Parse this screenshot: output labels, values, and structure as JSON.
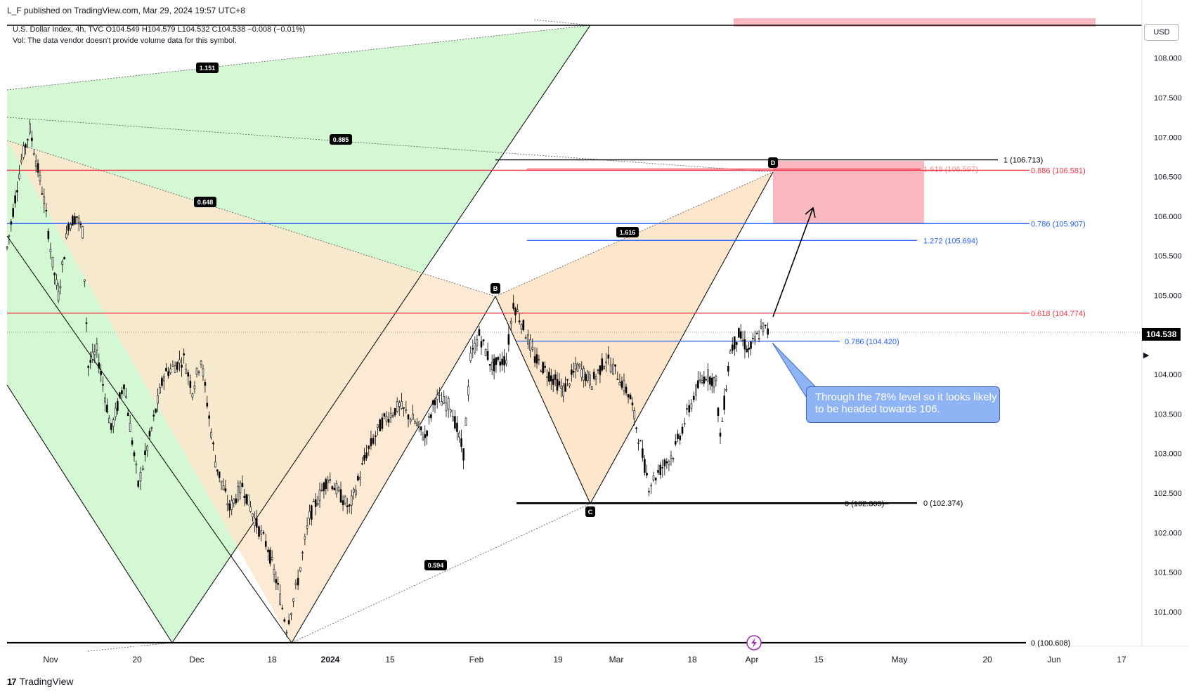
{
  "header": {
    "published": "L_F published on TradingView.com, Mar 29, 2024 19:57 UTC+8",
    "symbol_line": "U.S. Dollar Index, 4h, TVC  O104.549  H104.579  L104.532  C104.538  −0.008 (−0.01%)",
    "vol_line": "Vol: The data vendor doesn't provide volume data for this symbol."
  },
  "toolbar": {
    "currency": "USD",
    "last_price": "104.538"
  },
  "footer": {
    "brand": "TradingView"
  },
  "annotation": {
    "callout_text": "Through the 78% level so it looks likely to be headed towards 106."
  },
  "colors": {
    "green_fill": "#c8f5c8",
    "orange_fill": "#fde3c4",
    "red_zone": "#f9b8bf",
    "red_line": "#f23645",
    "blue_line": "#2962ff",
    "black": "#000000"
  },
  "chart_data": {
    "type": "candlestick",
    "symbol": "U.S. Dollar Index, 4h, TVC",
    "x_ticks": [
      "Nov",
      "20",
      "Dec",
      "18",
      "2024",
      "15",
      "Feb",
      "19",
      "Mar",
      "18",
      "Apr",
      "15",
      "May",
      "20",
      "Jun",
      "17"
    ],
    "y_ticks": [
      "108.000",
      "107.500",
      "107.000",
      "106.500",
      "106.000",
      "105.500",
      "105.000",
      "104.000",
      "103.500",
      "103.000",
      "102.500",
      "102.000",
      "101.500",
      "101.000"
    ],
    "ylim": [
      100.45,
      108.5
    ],
    "last_price": 104.538,
    "price_path": [
      [
        0,
        105.6
      ],
      [
        1,
        106.7
      ],
      [
        1.6,
        107.1
      ],
      [
        2.6,
        106.2
      ],
      [
        3.2,
        105.4
      ],
      [
        3.6,
        105.0
      ],
      [
        4.3,
        105.9
      ],
      [
        4.9,
        106.0
      ],
      [
        5.3,
        105.8
      ],
      [
        5.7,
        104.1
      ],
      [
        6.3,
        104.3
      ],
      [
        7.3,
        103.3
      ],
      [
        8.2,
        103.9
      ],
      [
        9.2,
        102.6
      ],
      [
        10.0,
        103.2
      ],
      [
        11.0,
        104.0
      ],
      [
        12.4,
        104.2
      ],
      [
        13.0,
        103.8
      ],
      [
        13.6,
        104.2
      ],
      [
        14.6,
        102.9
      ],
      [
        15.6,
        102.3
      ],
      [
        16.5,
        102.6
      ],
      [
        17.5,
        102.1
      ],
      [
        18.3,
        101.8
      ],
      [
        19.0,
        101.3
      ],
      [
        19.6,
        100.8
      ],
      [
        20.4,
        101.4
      ],
      [
        21.2,
        102.2
      ],
      [
        22.5,
        102.7
      ],
      [
        24.0,
        102.3
      ],
      [
        25.2,
        103.0
      ],
      [
        26.3,
        103.4
      ],
      [
        27.5,
        103.6
      ],
      [
        28.6,
        103.4
      ],
      [
        29.3,
        103.2
      ],
      [
        30.0,
        103.7
      ],
      [
        31.1,
        103.6
      ],
      [
        32.0,
        103.0
      ],
      [
        32.5,
        104.2
      ],
      [
        33.1,
        104.5
      ],
      [
        34.0,
        104.1
      ],
      [
        35.0,
        104.2
      ],
      [
        35.5,
        104.9
      ],
      [
        36.2,
        104.6
      ],
      [
        37.0,
        104.2
      ],
      [
        38.0,
        104.0
      ],
      [
        39.0,
        103.8
      ],
      [
        40.0,
        104.1
      ],
      [
        41.0,
        103.9
      ],
      [
        42.0,
        104.2
      ],
      [
        42.8,
        104.0
      ],
      [
        43.7,
        103.7
      ],
      [
        44.4,
        103.1
      ],
      [
        45.0,
        102.6
      ],
      [
        45.8,
        102.8
      ],
      [
        46.7,
        103.0
      ],
      [
        47.5,
        103.4
      ],
      [
        48.3,
        103.8
      ],
      [
        49.0,
        104.0
      ],
      [
        49.7,
        103.9
      ],
      [
        50.0,
        103.2
      ],
      [
        50.7,
        104.3
      ],
      [
        51.3,
        104.5
      ],
      [
        52.0,
        104.3
      ],
      [
        53.0,
        104.6
      ],
      [
        53.5,
        104.5
      ]
    ],
    "horizontal_levels": [
      {
        "label": "1 (106.713)",
        "value": 106.713,
        "color": "#000000"
      },
      {
        "label": "1.618 (106.597)",
        "value": 106.597,
        "color": "#f23645"
      },
      {
        "label": "0.886 (106.581)",
        "value": 106.581,
        "color": "#f23645"
      },
      {
        "label": "0.786 (105.907)",
        "value": 105.907,
        "color": "#2962ff"
      },
      {
        "label": "1.272 (105.694)",
        "value": 105.694,
        "color": "#2962ff"
      },
      {
        "label": "0.618 (104.774)",
        "value": 104.774,
        "color": "#f23645"
      },
      {
        "label": "0.786 (104.420)",
        "value": 104.42,
        "color": "#2962ff"
      },
      {
        "label": "0 (102.369)",
        "value": 102.369,
        "color": "#000000"
      },
      {
        "label": "0 (102.374)",
        "value": 102.374,
        "color": "#000000"
      },
      {
        "label": "0 (100.608)",
        "value": 100.608,
        "color": "#000000"
      }
    ],
    "pattern_points": [
      {
        "label": "B",
        "value": 104.98
      },
      {
        "label": "C",
        "value": 102.369
      },
      {
        "label": "D",
        "value": 106.713
      }
    ],
    "ratio_labels": [
      "1.151",
      "0.885",
      "0.648",
      "1.616",
      "0.594"
    ]
  }
}
